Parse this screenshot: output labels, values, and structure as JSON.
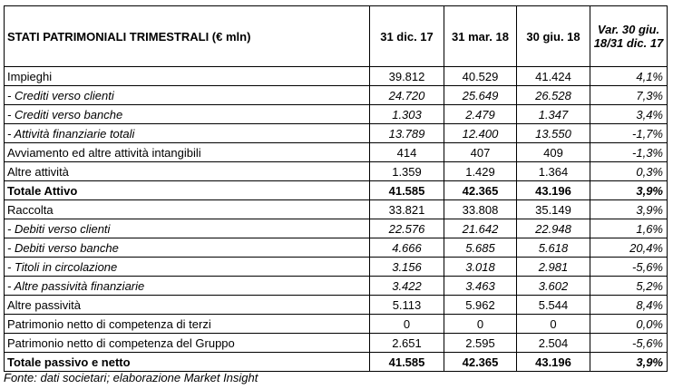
{
  "table": {
    "headers": {
      "label": "STATI PATRIMONIALI TRIMESTRALI (€ mln)",
      "col1": "31 dic. 17",
      "col2": "31 mar. 18",
      "col3": "30 giu. 18",
      "var": "Var. 30 giu. 18/31 dic. 17"
    },
    "rows": [
      {
        "label": "Impieghi",
        "v1": "39.812",
        "v2": "40.529",
        "v3": "41.424",
        "var": "4,1%",
        "style": "normal"
      },
      {
        "label": "- Crediti verso clienti",
        "v1": "24.720",
        "v2": "25.649",
        "v3": "26.528",
        "var": "7,3%",
        "style": "italic"
      },
      {
        "label": "- Crediti verso banche",
        "v1": "1.303",
        "v2": "2.479",
        "v3": "1.347",
        "var": "3,4%",
        "style": "italic"
      },
      {
        "label": "- Attività finanziarie totali",
        "v1": "13.789",
        "v2": "12.400",
        "v3": "13.550",
        "var": "-1,7%",
        "style": "italic"
      },
      {
        "label": "Avviamento ed altre attività intangibili",
        "v1": "414",
        "v2": "407",
        "v3": "409",
        "var": "-1,3%",
        "style": "normal"
      },
      {
        "label": "Altre attività",
        "v1": "1.359",
        "v2": "1.429",
        "v3": "1.364",
        "var": "0,3%",
        "style": "normal"
      },
      {
        "label": "Totale Attivo",
        "v1": "41.585",
        "v2": "42.365",
        "v3": "43.196",
        "var": "3,9%",
        "style": "total"
      },
      {
        "label": "Raccolta",
        "v1": "33.821",
        "v2": "33.808",
        "v3": "35.149",
        "var": "3,9%",
        "style": "normal"
      },
      {
        "label": "- Debiti verso clienti",
        "v1": "22.576",
        "v2": "21.642",
        "v3": "22.948",
        "var": "1,6%",
        "style": "italic"
      },
      {
        "label": "- Debiti verso banche",
        "v1": "4.666",
        "v2": "5.685",
        "v3": "5.618",
        "var": "20,4%",
        "style": "italic"
      },
      {
        "label": "- Titoli in circolazione",
        "v1": "3.156",
        "v2": "3.018",
        "v3": "2.981",
        "var": "-5,6%",
        "style": "italic"
      },
      {
        "label": "- Altre passività finanziarie",
        "v1": "3.422",
        "v2": "3.463",
        "v3": "3.602",
        "var": "5,2%",
        "style": "italic"
      },
      {
        "label": "Altre passività",
        "v1": "5.113",
        "v2": "5.962",
        "v3": "5.544",
        "var": "8,4%",
        "style": "normal"
      },
      {
        "label": "Patrimonio netto di competenza di terzi",
        "v1": "0",
        "v2": "0",
        "v3": "0",
        "var": "0,0%",
        "style": "normal"
      },
      {
        "label": "Patrimonio netto di competenza del Gruppo",
        "v1": "2.651",
        "v2": "2.595",
        "v3": "2.504",
        "var": "-5,6%",
        "style": "normal"
      },
      {
        "label": "Totale passivo e netto",
        "v1": "41.585",
        "v2": "42.365",
        "v3": "43.196",
        "var": "3,9%",
        "style": "total"
      }
    ]
  },
  "source": "Fonte: dati societari; elaborazione Market Insight"
}
